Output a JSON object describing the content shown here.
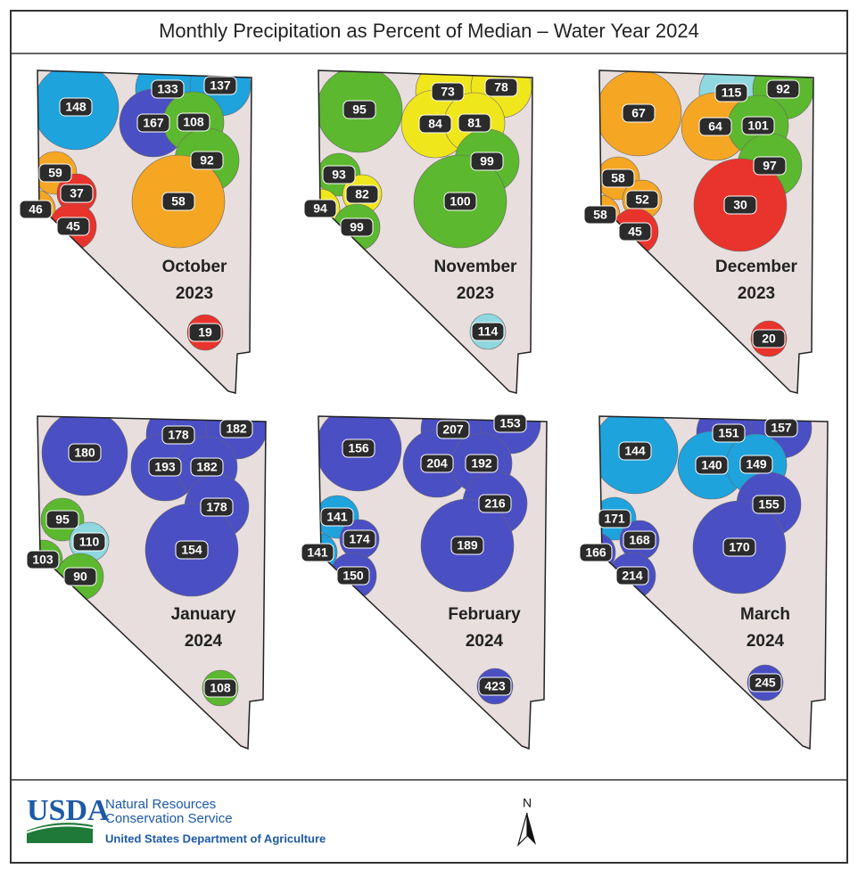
{
  "title": "Monthly Precipitation as Percent of Median – Water Year 2024",
  "panels": [
    {
      "month": "October",
      "year": "2023",
      "regions": [
        {
          "label": 148,
          "color": "#1ea3dd"
        },
        {
          "label": 133,
          "color": "#1ea3dd"
        },
        {
          "label": 137,
          "color": "#1ea3dd"
        },
        {
          "label": 167,
          "color": "#4b4fc4"
        },
        {
          "label": 108,
          "color": "#5cb82e"
        },
        {
          "label": 92,
          "color": "#5cb82e"
        },
        {
          "label": 59,
          "color": "#f5a623"
        },
        {
          "label": 37,
          "color": "#e8342c"
        },
        {
          "label": 46,
          "color": "#f5a623"
        },
        {
          "label": 45,
          "color": "#e8342c"
        },
        {
          "label": 58,
          "color": "#f5a623"
        },
        {
          "label": 19,
          "color": "#e8342c"
        }
      ]
    },
    {
      "month": "November",
      "year": "2023",
      "regions": [
        {
          "label": 95,
          "color": "#5cb82e"
        },
        {
          "label": 73,
          "color": "#f0e61c"
        },
        {
          "label": 78,
          "color": "#f0e61c"
        },
        {
          "label": 84,
          "color": "#f0e61c"
        },
        {
          "label": 81,
          "color": "#f0e61c"
        },
        {
          "label": 99,
          "color": "#5cb82e"
        },
        {
          "label": 93,
          "color": "#5cb82e"
        },
        {
          "label": 82,
          "color": "#f0e61c"
        },
        {
          "label": 94,
          "color": "#f0e61c"
        },
        {
          "label": 99,
          "color": "#5cb82e"
        },
        {
          "label": 100,
          "color": "#5cb82e"
        },
        {
          "label": 114,
          "color": "#8fd8e0"
        }
      ]
    },
    {
      "month": "December",
      "year": "2023",
      "regions": [
        {
          "label": 67,
          "color": "#f5a623"
        },
        {
          "label": 115,
          "color": "#8fd8e0"
        },
        {
          "label": 92,
          "color": "#5cb82e"
        },
        {
          "label": 64,
          "color": "#f5a623"
        },
        {
          "label": 101,
          "color": "#5cb82e"
        },
        {
          "label": 97,
          "color": "#5cb82e"
        },
        {
          "label": 58,
          "color": "#f5a623"
        },
        {
          "label": 52,
          "color": "#f5a623"
        },
        {
          "label": 58,
          "color": "#f5a623"
        },
        {
          "label": 45,
          "color": "#e8342c"
        },
        {
          "label": 30,
          "color": "#e8342c"
        },
        {
          "label": 20,
          "color": "#e8342c"
        }
      ]
    },
    {
      "month": "January",
      "year": "2024",
      "regions": [
        {
          "label": 180,
          "color": "#4b4fc4"
        },
        {
          "label": 178,
          "color": "#4b4fc4"
        },
        {
          "label": 182,
          "color": "#4b4fc4"
        },
        {
          "label": 193,
          "color": "#4b4fc4"
        },
        {
          "label": 182,
          "color": "#4b4fc4"
        },
        {
          "label": 178,
          "color": "#4b4fc4"
        },
        {
          "label": 95,
          "color": "#5cb82e"
        },
        {
          "label": 110,
          "color": "#8fd8e0"
        },
        {
          "label": 103,
          "color": "#5cb82e"
        },
        {
          "label": 90,
          "color": "#5cb82e"
        },
        {
          "label": 154,
          "color": "#4b4fc4"
        },
        {
          "label": 108,
          "color": "#5cb82e"
        }
      ]
    },
    {
      "month": "February",
      "year": "2024",
      "regions": [
        {
          "label": 156,
          "color": "#4b4fc4"
        },
        {
          "label": 207,
          "color": "#4b4fc4"
        },
        {
          "label": 153,
          "color": "#4b4fc4"
        },
        {
          "label": 204,
          "color": "#4b4fc4"
        },
        {
          "label": 192,
          "color": "#4b4fc4"
        },
        {
          "label": 216,
          "color": "#4b4fc4"
        },
        {
          "label": 141,
          "color": "#1ea3dd"
        },
        {
          "label": 174,
          "color": "#4b4fc4"
        },
        {
          "label": 141,
          "color": "#1ea3dd"
        },
        {
          "label": 150,
          "color": "#4b4fc4"
        },
        {
          "label": 189,
          "color": "#4b4fc4"
        },
        {
          "label": 423,
          "color": "#4b4fc4"
        }
      ]
    },
    {
      "month": "March",
      "year": "2024",
      "regions": [
        {
          "label": 144,
          "color": "#1ea3dd"
        },
        {
          "label": 151,
          "color": "#4b4fc4"
        },
        {
          "label": 157,
          "color": "#4b4fc4"
        },
        {
          "label": 140,
          "color": "#1ea3dd"
        },
        {
          "label": 149,
          "color": "#1ea3dd"
        },
        {
          "label": 155,
          "color": "#4b4fc4"
        },
        {
          "label": 171,
          "color": "#1ea3dd"
        },
        {
          "label": 168,
          "color": "#4b4fc4"
        },
        {
          "label": 166,
          "color": "#4b4fc4"
        },
        {
          "label": 214,
          "color": "#4b4fc4"
        },
        {
          "label": 170,
          "color": "#4b4fc4"
        },
        {
          "label": 245,
          "color": "#4b4fc4"
        }
      ]
    }
  ],
  "footer": {
    "logo": "USDA",
    "org_line1": "Natural Resources",
    "org_line2": "Conservation Service",
    "department": "United States Department of Agriculture",
    "north": "N"
  }
}
